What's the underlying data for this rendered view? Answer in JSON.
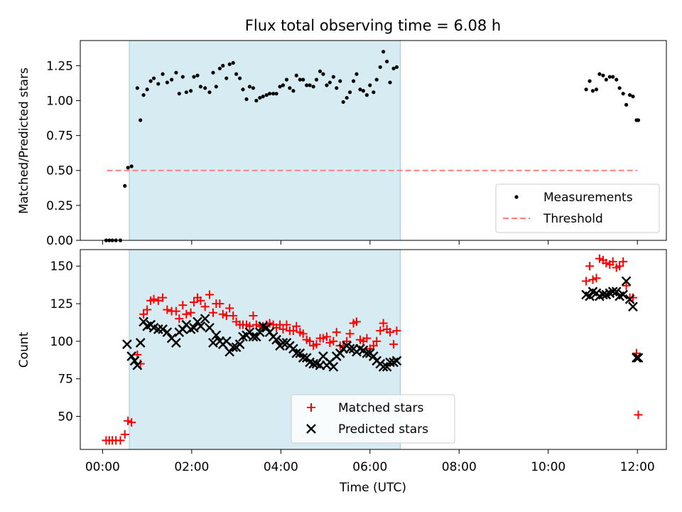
{
  "title": "Flux total observing time = 6.08 h",
  "colors": {
    "shade": "#add8e6",
    "measurement": "#000000",
    "threshold": "#ff7f7f",
    "matched": "#ff0000",
    "predicted": "#000000"
  },
  "chart_data": [
    {
      "type": "scatter",
      "ylabel": "Matched/Predicted stars",
      "ylim": [
        0,
        1.43
      ],
      "yticks": [
        "0.00",
        "0.25",
        "0.50",
        "0.75",
        "1.00",
        "1.25"
      ],
      "shaded_interval_hours": [
        0.6,
        6.68
      ],
      "threshold": {
        "name": "Threshold",
        "value": 0.5,
        "x_range_hours": [
          0.1,
          12.0
        ]
      },
      "legend_position": "lower-right",
      "series": [
        {
          "name": "Measurements",
          "marker": "dot",
          "x": [
            0.08,
            0.15,
            0.22,
            0.3,
            0.4,
            0.5,
            0.57,
            0.65,
            0.78,
            0.85,
            0.92,
            1.0,
            1.08,
            1.15,
            1.25,
            1.35,
            1.45,
            1.55,
            1.65,
            1.72,
            1.8,
            1.88,
            1.98,
            2.05,
            2.13,
            2.2,
            2.3,
            2.4,
            2.48,
            2.55,
            2.63,
            2.7,
            2.78,
            2.85,
            2.93,
            3.0,
            3.08,
            3.15,
            3.23,
            3.3,
            3.38,
            3.45,
            3.53,
            3.6,
            3.68,
            3.75,
            3.83,
            3.9,
            3.98,
            4.05,
            4.13,
            4.2,
            4.28,
            4.35,
            4.43,
            4.5,
            4.58,
            4.65,
            4.73,
            4.8,
            4.88,
            4.95,
            5.03,
            5.1,
            5.18,
            5.25,
            5.33,
            5.4,
            5.48,
            5.55,
            5.63,
            5.7,
            5.78,
            5.85,
            5.93,
            6.0,
            6.08,
            6.15,
            6.23,
            6.3,
            6.38,
            6.45,
            6.53,
            6.6,
            10.85,
            10.93,
            11.0,
            11.08,
            11.15,
            11.23,
            11.3,
            11.38,
            11.45,
            11.53,
            11.6,
            11.68,
            11.75,
            11.83,
            11.9,
            11.98,
            12.02
          ],
          "y": [
            0,
            0,
            0,
            0,
            0,
            0.39,
            0.52,
            0.53,
            1.09,
            0.86,
            1.04,
            1.08,
            1.14,
            1.16,
            1.12,
            1.19,
            1.13,
            1.15,
            1.2,
            1.05,
            1.17,
            1.06,
            1.07,
            1.17,
            1.18,
            1.1,
            1.09,
            1.06,
            1.2,
            1.1,
            1.23,
            1.25,
            1.16,
            1.26,
            1.27,
            1.19,
            1.16,
            1.08,
            1.01,
            1.1,
            1.09,
            1.0,
            1.02,
            1.03,
            1.04,
            1.05,
            1.05,
            1.05,
            1.1,
            1.11,
            1.15,
            1.09,
            1.07,
            1.18,
            1.15,
            1.15,
            1.11,
            1.11,
            1.1,
            1.15,
            1.21,
            1.19,
            1.11,
            1.13,
            1.17,
            1.09,
            1.14,
            0.99,
            1.02,
            1.06,
            1.14,
            1.19,
            1.08,
            1.07,
            1.04,
            1.11,
            1.06,
            1.15,
            1.24,
            1.35,
            1.28,
            1.13,
            1.23,
            1.24,
            1.08,
            1.14,
            1.07,
            1.08,
            1.19,
            1.18,
            1.15,
            1.17,
            1.17,
            1.15,
            1.09,
            1.05,
            0.97,
            1.04,
            1.03,
            0.86,
            0.86
          ]
        }
      ]
    },
    {
      "type": "scatter",
      "xlabel": "Time (UTC)",
      "ylabel": "Count",
      "xlim_hours": [
        -0.5,
        12.65
      ],
      "ylim": [
        28,
        161
      ],
      "xticks": [
        "00:00",
        "02:00",
        "04:00",
        "06:00",
        "08:00",
        "10:00",
        "12:00"
      ],
      "yticks": [
        "50",
        "75",
        "100",
        "125",
        "150"
      ],
      "shaded_interval_hours": [
        0.6,
        6.68
      ],
      "legend_position": "lower-center",
      "series": [
        {
          "name": "Matched stars",
          "marker": "plus",
          "x": [
            0.08,
            0.15,
            0.22,
            0.3,
            0.4,
            0.5,
            0.57,
            0.65,
            0.78,
            0.85,
            0.92,
            1.0,
            1.08,
            1.15,
            1.25,
            1.35,
            1.45,
            1.55,
            1.65,
            1.72,
            1.8,
            1.88,
            1.98,
            2.05,
            2.13,
            2.2,
            2.3,
            2.4,
            2.48,
            2.55,
            2.63,
            2.7,
            2.78,
            2.85,
            2.93,
            3.0,
            3.08,
            3.15,
            3.23,
            3.3,
            3.38,
            3.45,
            3.53,
            3.6,
            3.68,
            3.75,
            3.83,
            3.9,
            3.98,
            4.05,
            4.13,
            4.2,
            4.28,
            4.35,
            4.43,
            4.5,
            4.58,
            4.65,
            4.73,
            4.8,
            4.88,
            4.95,
            5.03,
            5.1,
            5.18,
            5.25,
            5.33,
            5.4,
            5.48,
            5.55,
            5.63,
            5.7,
            5.78,
            5.85,
            5.93,
            6.0,
            6.08,
            6.15,
            6.23,
            6.3,
            6.38,
            6.45,
            6.53,
            6.6,
            10.85,
            10.93,
            11.0,
            11.08,
            11.15,
            11.23,
            11.3,
            11.38,
            11.45,
            11.53,
            11.6,
            11.68,
            11.75,
            11.83,
            11.9,
            11.98,
            12.02
          ],
          "y": [
            34,
            34,
            34,
            34,
            34,
            38,
            47,
            46,
            91,
            85,
            118,
            121,
            127,
            128,
            127,
            129,
            121,
            120,
            120,
            115,
            124,
            118,
            119,
            126,
            129,
            127,
            123,
            131,
            119,
            125,
            125,
            118,
            117,
            122,
            117,
            113,
            111,
            111,
            111,
            110,
            117,
            111,
            110,
            110,
            111,
            112,
            111,
            109,
            111,
            108,
            111,
            107,
            107,
            110,
            106,
            105,
            101,
            100,
            97,
            98,
            102,
            102,
            103,
            99,
            100,
            106,
            97,
            97,
            100,
            105,
            112,
            113,
            101,
            100,
            102,
            95,
            97,
            100,
            107,
            112,
            108,
            106,
            98,
            107,
            140,
            150,
            141,
            142,
            155,
            154,
            152,
            151,
            153,
            149,
            150,
            153,
            137,
            129,
            129,
            92,
            51
          ],
          "y_note": ""
        },
        {
          "name": "Predicted stars",
          "marker": "x",
          "x": [
            0.55,
            0.65,
            0.72,
            0.78,
            0.85,
            0.92,
            1.0,
            1.08,
            1.15,
            1.25,
            1.35,
            1.45,
            1.55,
            1.65,
            1.72,
            1.8,
            1.88,
            1.98,
            2.05,
            2.13,
            2.2,
            2.3,
            2.4,
            2.48,
            2.55,
            2.63,
            2.7,
            2.78,
            2.85,
            2.93,
            3.0,
            3.08,
            3.15,
            3.23,
            3.3,
            3.38,
            3.45,
            3.53,
            3.6,
            3.68,
            3.75,
            3.83,
            3.9,
            3.98,
            4.05,
            4.13,
            4.2,
            4.28,
            4.35,
            4.43,
            4.5,
            4.58,
            4.65,
            4.73,
            4.8,
            4.88,
            4.95,
            5.03,
            5.1,
            5.18,
            5.25,
            5.33,
            5.4,
            5.48,
            5.55,
            5.63,
            5.7,
            5.78,
            5.85,
            5.93,
            6.0,
            6.08,
            6.15,
            6.23,
            6.3,
            6.38,
            6.45,
            6.53,
            6.6,
            10.85,
            10.93,
            11.0,
            11.08,
            11.15,
            11.23,
            11.3,
            11.38,
            11.45,
            11.53,
            11.6,
            11.68,
            11.75,
            11.83,
            11.9,
            11.98,
            12.02
          ],
          "y": [
            98,
            90,
            87,
            84,
            99,
            113,
            110,
            111,
            109,
            108,
            108,
            106,
            102,
            99,
            106,
            108,
            111,
            108,
            109,
            113,
            110,
            115,
            109,
            99,
            104,
            100,
            98,
            100,
            93,
            96,
            96,
            98,
            103,
            104,
            106,
            103,
            103,
            106,
            110,
            109,
            106,
            103,
            101,
            97,
            99,
            99,
            97,
            95,
            92,
            92,
            89,
            89,
            86,
            85,
            85,
            84,
            90,
            84,
            86,
            83,
            90,
            92,
            95,
            97,
            95,
            95,
            93,
            95,
            94,
            92,
            92,
            90,
            87,
            85,
            83,
            83,
            86,
            86,
            87,
            131,
            130,
            133,
            132,
            130,
            131,
            131,
            132,
            133,
            133,
            130,
            131,
            140,
            128,
            123,
            89,
            89
          ]
        }
      ]
    }
  ]
}
